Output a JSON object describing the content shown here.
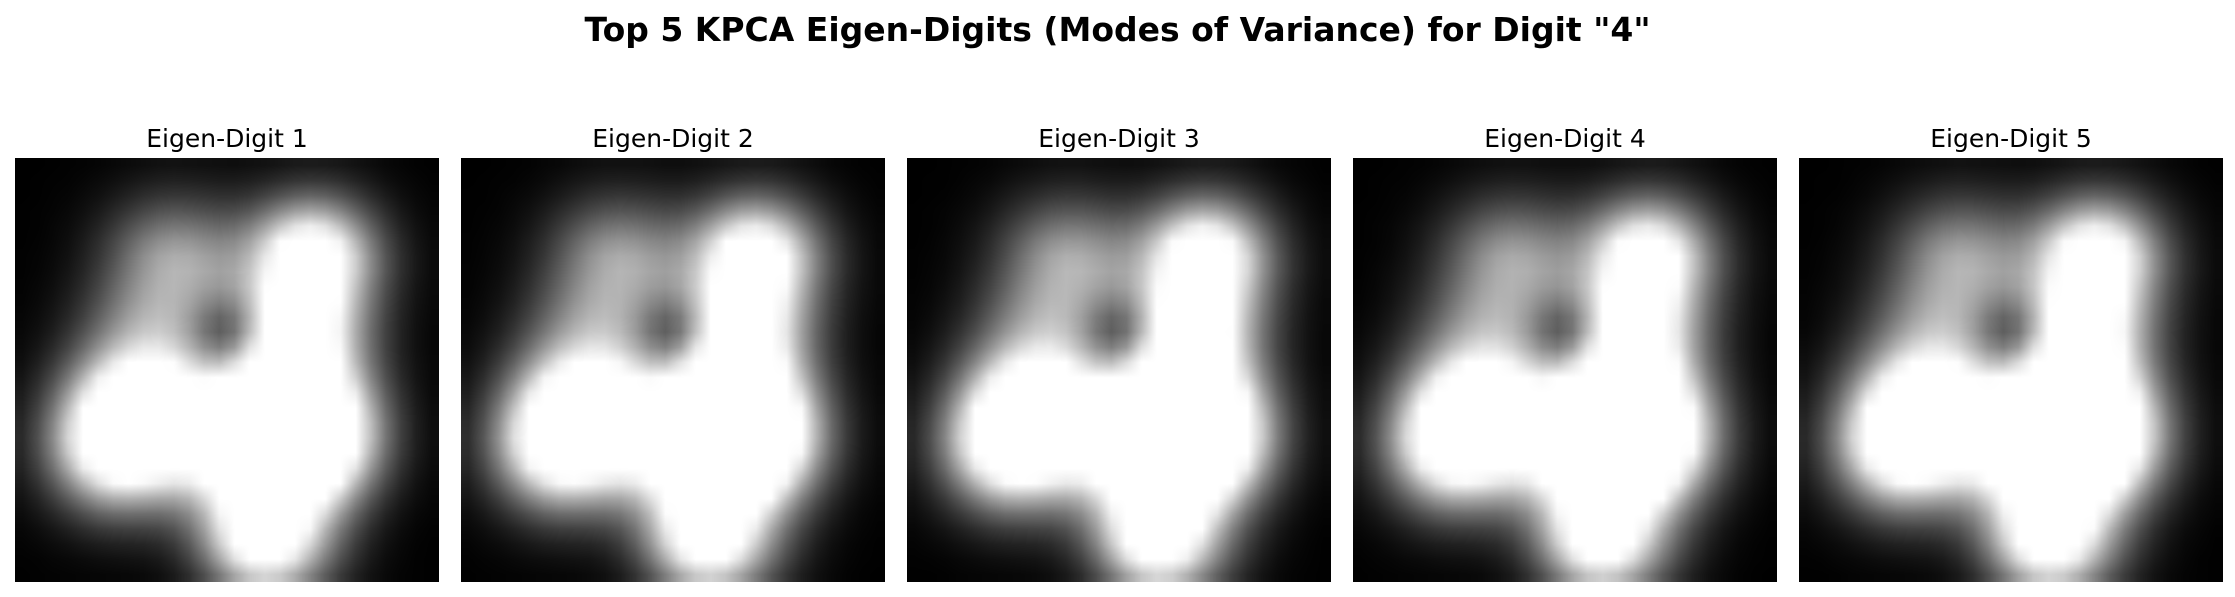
{
  "figure": {
    "title": "Top 5 KPCA Eigen-Digits (Modes of Variance) for Digit \"4\""
  },
  "panels": [
    {
      "title": "Eigen-Digit 1",
      "image": "blurred-grayscale-digit-four"
    },
    {
      "title": "Eigen-Digit 2",
      "image": "blurred-grayscale-digit-four"
    },
    {
      "title": "Eigen-Digit 3",
      "image": "blurred-grayscale-digit-four"
    },
    {
      "title": "Eigen-Digit 4",
      "image": "blurred-grayscale-digit-four"
    },
    {
      "title": "Eigen-Digit 5",
      "image": "blurred-grayscale-digit-four"
    }
  ],
  "colors": {
    "background": "#ffffff",
    "image_background": "#000000",
    "text": "#000000"
  }
}
